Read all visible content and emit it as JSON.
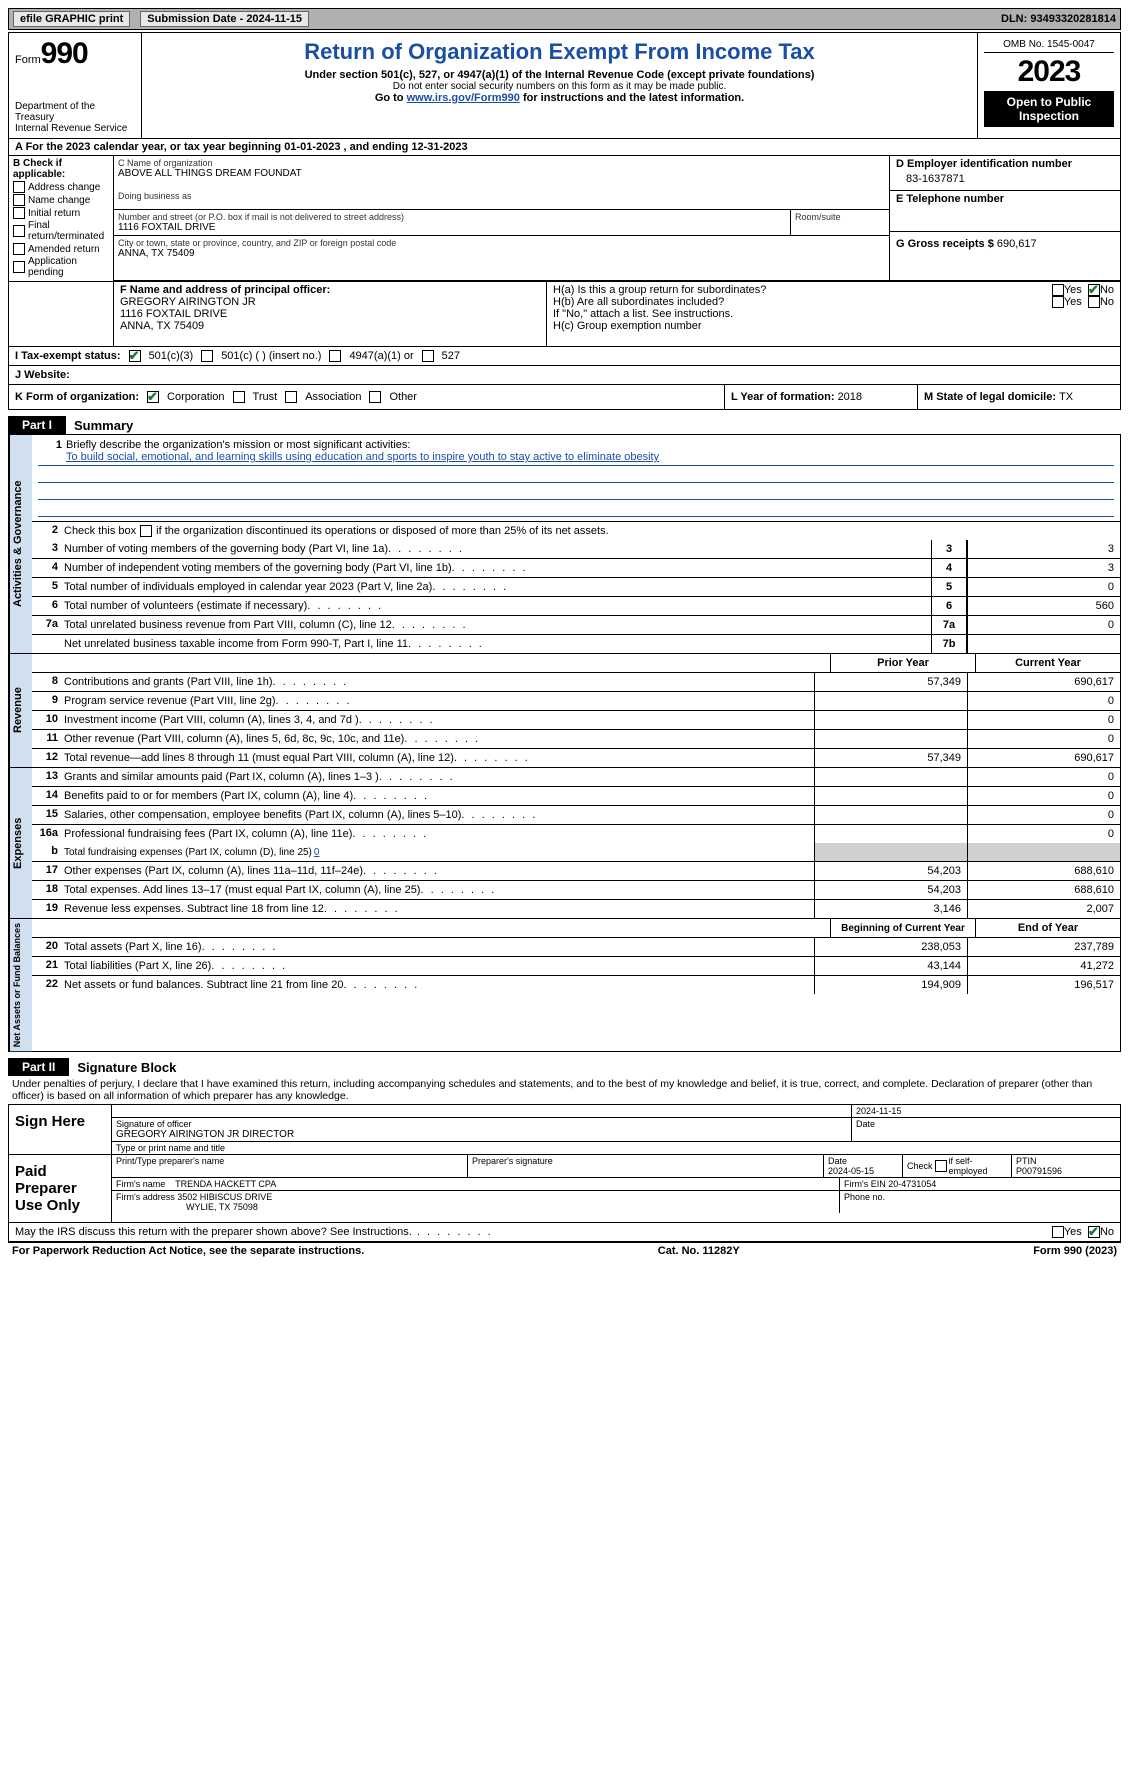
{
  "top": {
    "efile": "efile GRAPHIC print",
    "submission": "Submission Date - 2024-11-15",
    "dln": "DLN: 93493320281814"
  },
  "header": {
    "form_prefix": "Form",
    "form_number": "990",
    "dept": "Department of the Treasury",
    "irs": "Internal Revenue Service",
    "title": "Return of Organization Exempt From Income Tax",
    "subtitle": "Under section 501(c), 527, or 4947(a)(1) of the Internal Revenue Code (except private foundations)",
    "ssn_notice": "Do not enter social security numbers on this form as it may be made public.",
    "goto": "Go to ",
    "goto_link": "www.irs.gov/Form990",
    "goto_rest": " for instructions and the latest information.",
    "omb": "OMB No. 1545-0047",
    "year": "2023",
    "open": "Open to Public Inspection"
  },
  "section_a": {
    "label": "A  For the 2023 calendar year, or tax year beginning 01-01-2023    , and ending 12-31-2023"
  },
  "box_b": {
    "title": "B Check if applicable:",
    "items": [
      "Address change",
      "Name change",
      "Initial return",
      "Final return/terminated",
      "Amended return",
      "Application pending"
    ]
  },
  "box_c": {
    "name_label": "C Name of organization",
    "name": "ABOVE ALL THINGS DREAM FOUNDAT",
    "dba_label": "Doing business as",
    "dba": "",
    "addr_label": "Number and street (or P.O. box if mail is not delivered to street address)",
    "addr": "1116 FOXTAIL DRIVE",
    "room_label": "Room/suite",
    "city_label": "City or town, state or province, country, and ZIP or foreign postal code",
    "city": "ANNA, TX  75409"
  },
  "box_d": {
    "label": "D Employer identification number",
    "ein": "83-1637871"
  },
  "box_e": {
    "label": "E Telephone number",
    "phone": ""
  },
  "box_g": {
    "label": "G Gross receipts $ ",
    "amount": "690,617"
  },
  "box_f": {
    "label": "F  Name and address of principal officer:",
    "name": "GREGORY AIRINGTON JR",
    "addr1": "1116 FOXTAIL DRIVE",
    "addr2": "ANNA, TX  75409"
  },
  "box_h": {
    "ha_label": "H(a)  Is this a group return for subordinates?",
    "hb_label": "H(b)  Are all subordinates included?",
    "hb_note": "If \"No,\" attach a list. See instructions.",
    "hc_label": "H(c)  Group exemption number",
    "yes": "Yes",
    "no": "No"
  },
  "box_i": {
    "label": "I  Tax-exempt status:",
    "opt1": "501(c)(3)",
    "opt2": "501(c) (  ) (insert no.)",
    "opt3": "4947(a)(1) or",
    "opt4": "527"
  },
  "box_j": {
    "label": "J  Website:",
    "value": ""
  },
  "box_k": {
    "label": "K Form of organization:",
    "opts": [
      "Corporation",
      "Trust",
      "Association",
      "Other"
    ]
  },
  "box_l": {
    "label": "L Year of formation: ",
    "value": "2018"
  },
  "box_m": {
    "label": "M State of legal domicile: ",
    "value": "TX"
  },
  "parts": {
    "p1_tab": "Part I",
    "p1_title": "Summary",
    "p2_tab": "Part II",
    "p2_title": "Signature Block"
  },
  "summary": {
    "sec1_label": "Activities & Governance",
    "sec2_label": "Revenue",
    "sec3_label": "Expenses",
    "sec4_label": "Net Assets or Fund Balances",
    "line1_label": "Briefly describe the organization's mission or most significant activities:",
    "line1_text": "To build social, emotional, and learning skills using education and sports to inspire youth to stay active to eliminate obesity",
    "line2_label": "Check this box ",
    "line2_rest": " if the organization discontinued its operations or disposed of more than 25% of its net assets.",
    "lines_a": [
      {
        "n": "3",
        "d": "Number of voting members of the governing body (Part VI, line 1a)",
        "ln": "3",
        "v": "3"
      },
      {
        "n": "4",
        "d": "Number of independent voting members of the governing body (Part VI, line 1b)",
        "ln": "4",
        "v": "3"
      },
      {
        "n": "5",
        "d": "Total number of individuals employed in calendar year 2023 (Part V, line 2a)",
        "ln": "5",
        "v": "0"
      },
      {
        "n": "6",
        "d": "Total number of volunteers (estimate if necessary)",
        "ln": "6",
        "v": "560"
      },
      {
        "n": "7a",
        "d": "Total unrelated business revenue from Part VIII, column (C), line 12",
        "ln": "7a",
        "v": "0"
      },
      {
        "n": "",
        "d": "Net unrelated business taxable income from Form 990-T, Part I, line 11",
        "ln": "7b",
        "v": ""
      }
    ],
    "col_prior": "Prior Year",
    "col_current": "Current Year",
    "col_begin": "Beginning of Current Year",
    "col_end": "End of Year",
    "lines_rev": [
      {
        "n": "8",
        "d": "Contributions and grants (Part VIII, line 1h)",
        "p": "57,349",
        "c": "690,617"
      },
      {
        "n": "9",
        "d": "Program service revenue (Part VIII, line 2g)",
        "p": "",
        "c": "0"
      },
      {
        "n": "10",
        "d": "Investment income (Part VIII, column (A), lines 3, 4, and 7d )",
        "p": "",
        "c": "0"
      },
      {
        "n": "11",
        "d": "Other revenue (Part VIII, column (A), lines 5, 6d, 8c, 9c, 10c, and 11e)",
        "p": "",
        "c": "0"
      },
      {
        "n": "12",
        "d": "Total revenue—add lines 8 through 11 (must equal Part VIII, column (A), line 12)",
        "p": "57,349",
        "c": "690,617"
      }
    ],
    "lines_exp": [
      {
        "n": "13",
        "d": "Grants and similar amounts paid (Part IX, column (A), lines 1–3 )",
        "p": "",
        "c": "0"
      },
      {
        "n": "14",
        "d": "Benefits paid to or for members (Part IX, column (A), line 4)",
        "p": "",
        "c": "0"
      },
      {
        "n": "15",
        "d": "Salaries, other compensation, employee benefits (Part IX, column (A), lines 5–10)",
        "p": "",
        "c": "0"
      },
      {
        "n": "16a",
        "d": "Professional fundraising fees (Part IX, column (A), line 11e)",
        "p": "",
        "c": "0"
      }
    ],
    "line16b": {
      "n": "b",
      "d": "Total fundraising expenses (Part IX, column (D), line 25) ",
      "u": "0"
    },
    "lines_exp2": [
      {
        "n": "17",
        "d": "Other expenses (Part IX, column (A), lines 11a–11d, 11f–24e)",
        "p": "54,203",
        "c": "688,610"
      },
      {
        "n": "18",
        "d": "Total expenses. Add lines 13–17 (must equal Part IX, column (A), line 25)",
        "p": "54,203",
        "c": "688,610"
      },
      {
        "n": "19",
        "d": "Revenue less expenses. Subtract line 18 from line 12",
        "p": "3,146",
        "c": "2,007"
      }
    ],
    "lines_net": [
      {
        "n": "20",
        "d": "Total assets (Part X, line 16)",
        "p": "238,053",
        "c": "237,789"
      },
      {
        "n": "21",
        "d": "Total liabilities (Part X, line 26)",
        "p": "43,144",
        "c": "41,272"
      },
      {
        "n": "22",
        "d": "Net assets or fund balances. Subtract line 21 from line 20",
        "p": "194,909",
        "c": "196,517"
      }
    ]
  },
  "sig": {
    "penalty": "Under penalties of perjury, I declare that I have examined this return, including accompanying schedules and statements, and to the best of my knowledge and belief, it is true, correct, and complete. Declaration of preparer (other than officer) is based on all information of which preparer has any knowledge.",
    "sign_here": "Sign Here",
    "paid_prep": "Paid Preparer Use Only",
    "sig_officer_label": "Signature of officer",
    "sig_officer": "GREGORY AIRINGTON JR  DIRECTOR",
    "sig_name_label": "Type or print name and title",
    "date_label": "Date",
    "date": "2024-11-15",
    "prep_name_label": "Print/Type preparer's name",
    "prep_sig_label": "Preparer's signature",
    "prep_date": "2024-05-15",
    "check_label": "Check           if self-employed",
    "ptin_label": "PTIN",
    "ptin": "P00791596",
    "firm_name_label": "Firm's name    ",
    "firm_name": "TRENDA HACKETT CPA",
    "firm_ein_label": "Firm's EIN ",
    "firm_ein": "20-4731054",
    "firm_addr_label": "Firm's address ",
    "firm_addr1": "3502 HIBISCUS DRIVE",
    "firm_addr2": "WYLIE, TX  75098",
    "phone_label": "Phone no.",
    "discuss": "May the IRS discuss this return with the preparer shown above? See Instructions."
  },
  "footer": {
    "paperwork": "For Paperwork Reduction Act Notice, see the separate instructions.",
    "cat": "Cat. No. 11282Y",
    "form": "Form 990 (2023)"
  }
}
